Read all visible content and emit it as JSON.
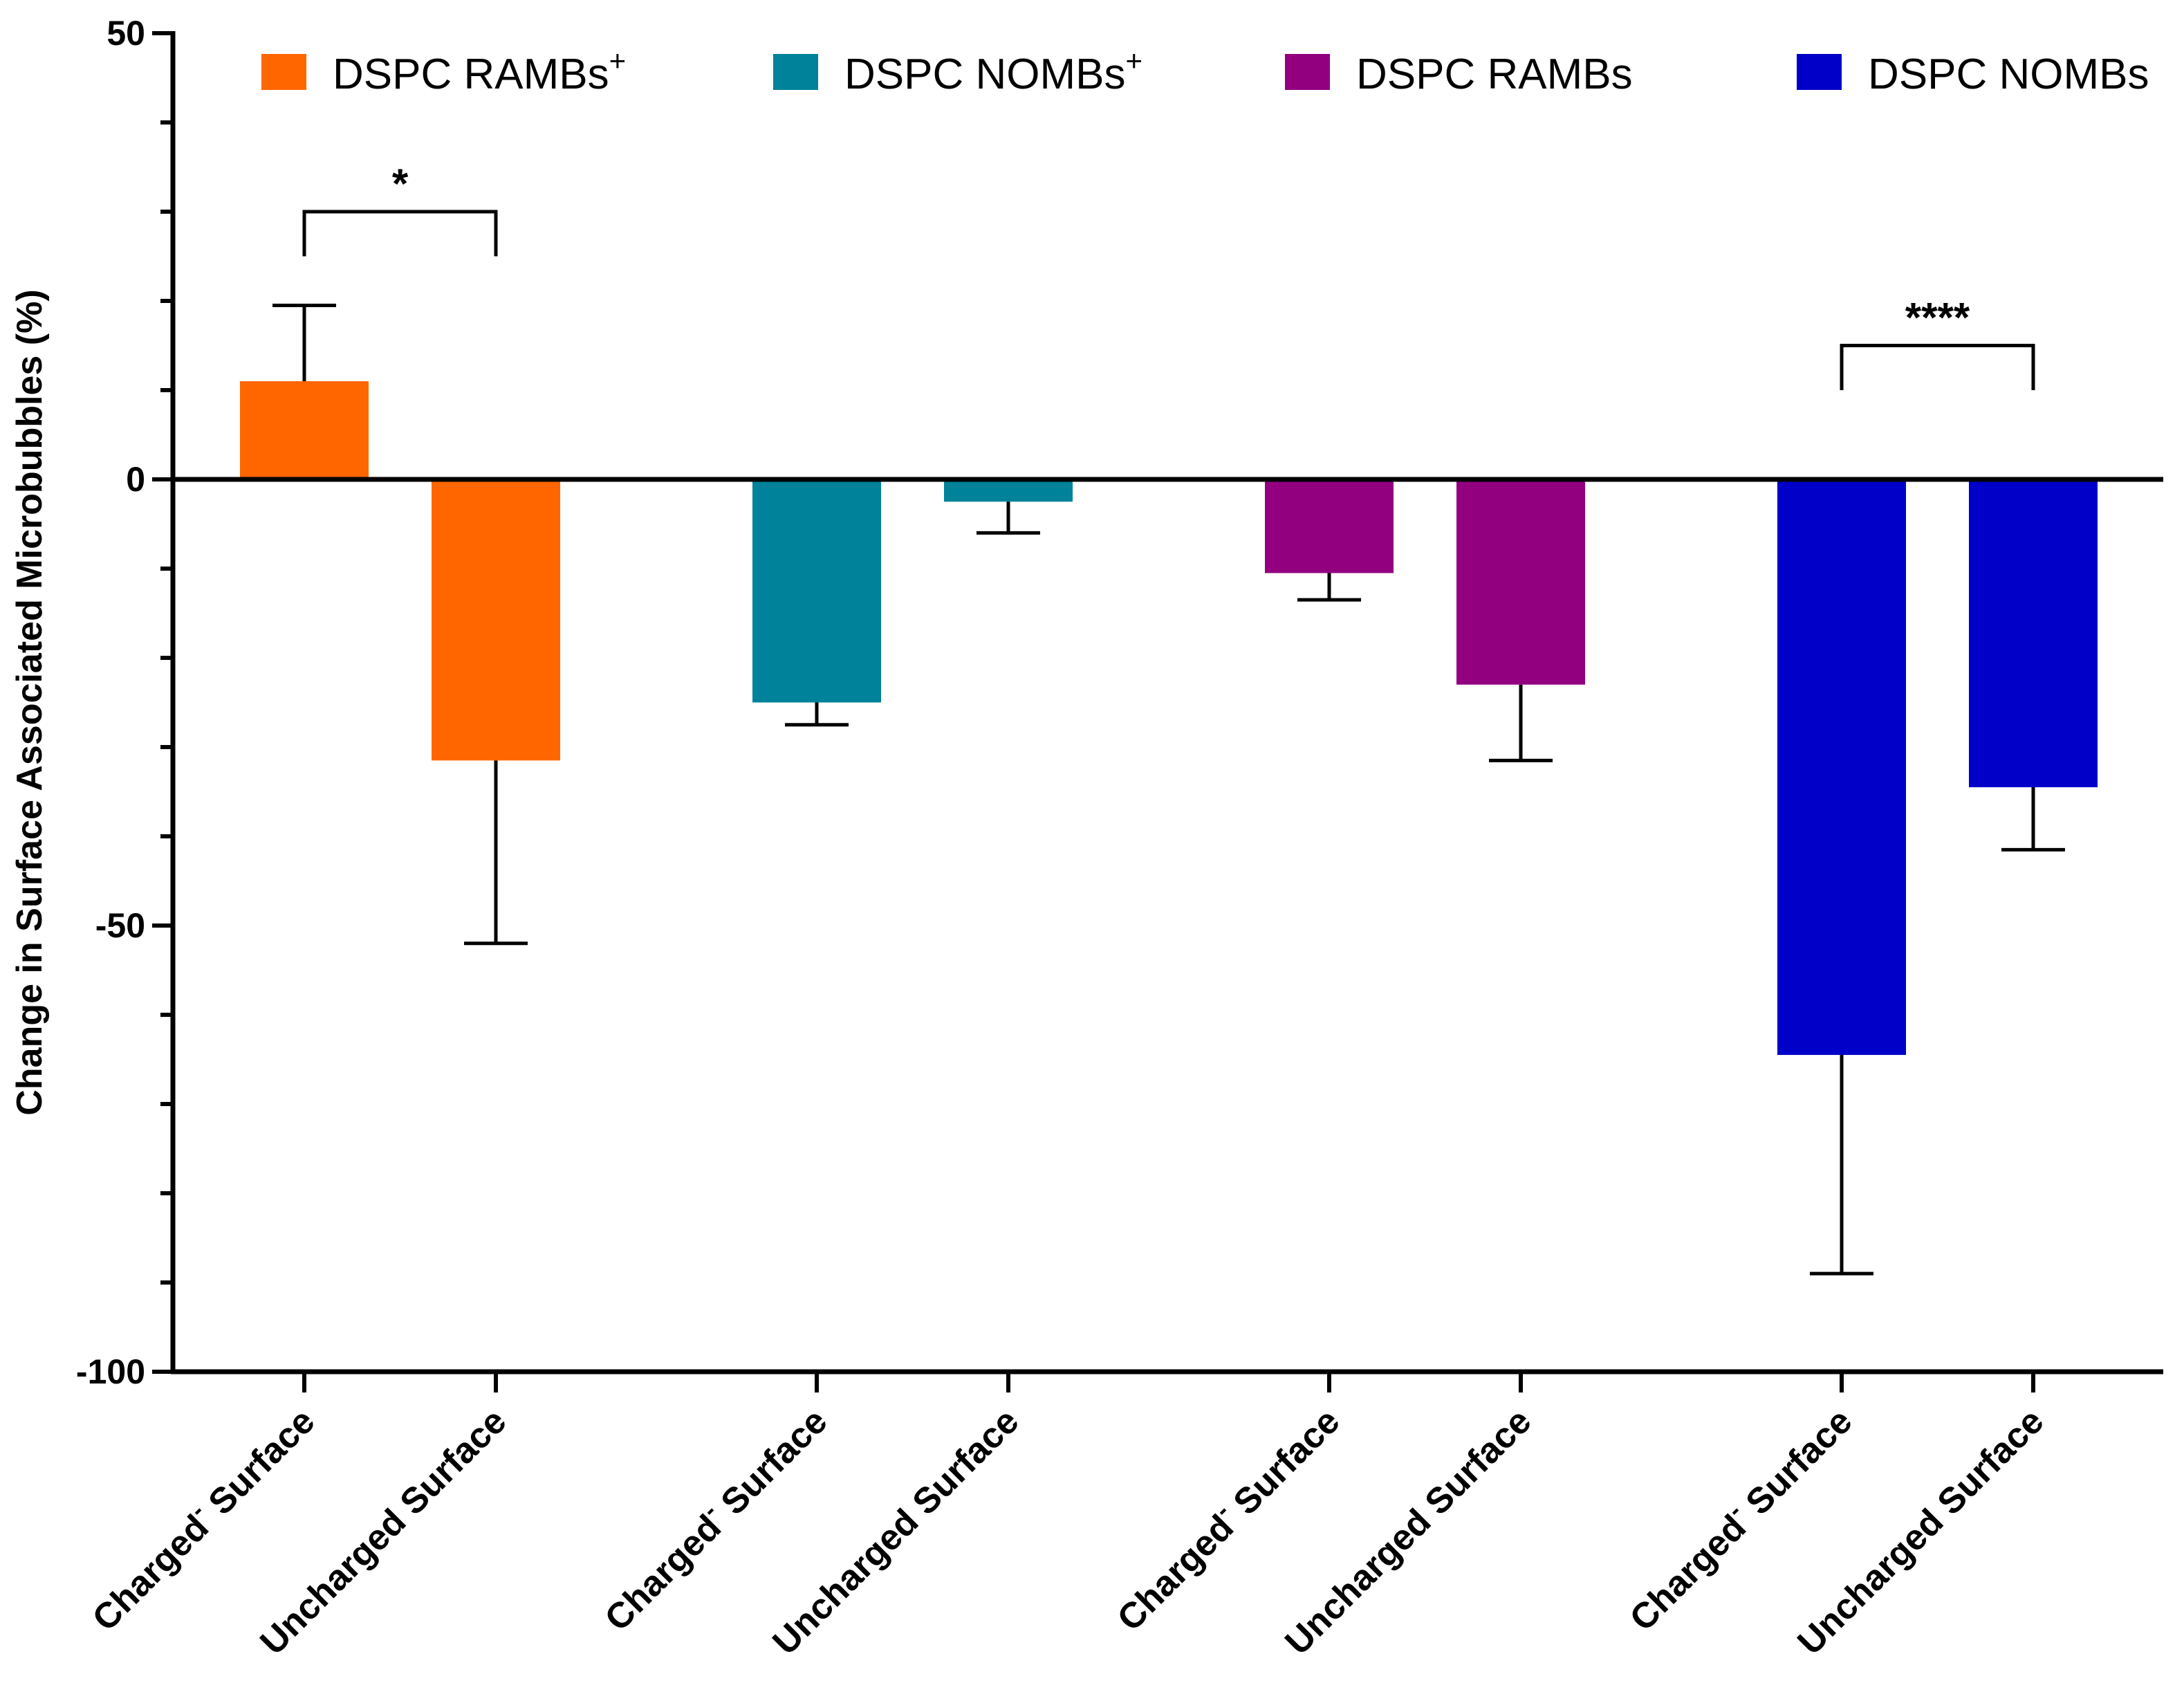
{
  "chart_data": {
    "type": "bar",
    "ylabel": "Change in Surface Associated Microbubbles (%)",
    "ylim": [
      -100,
      50
    ],
    "yticks": [
      50,
      0,
      -50,
      -100
    ],
    "ytick_labels": [
      "50",
      "0",
      "-50",
      "-100"
    ],
    "legend_position": "top",
    "series": [
      {
        "name": "DSPC RAMBs",
        "superscript": "+",
        "color": "#ff6600",
        "categories": [
          "Charged",
          "Uncharged Surface"
        ],
        "category_superscripts": [
          "-",
          ""
        ],
        "category_suffixes": [
          " Surface",
          ""
        ],
        "values": [
          11,
          -31.5
        ],
        "errors": [
          8.5,
          20.5
        ]
      },
      {
        "name": "DSPC NOMBs",
        "superscript": "+",
        "color": "#00829a",
        "categories": [
          "Charged",
          "Uncharged Surface"
        ],
        "category_superscripts": [
          "-",
          ""
        ],
        "category_suffixes": [
          " Surface",
          ""
        ],
        "values": [
          -25,
          -2.5
        ],
        "errors": [
          2.5,
          3.5
        ]
      },
      {
        "name": "DSPC RAMBs",
        "superscript": "",
        "color": "#920080",
        "categories": [
          "Charged",
          "Uncharged Surface"
        ],
        "category_superscripts": [
          "-",
          ""
        ],
        "category_suffixes": [
          " Surface",
          ""
        ],
        "values": [
          -10.5,
          -23
        ],
        "errors": [
          3,
          8.5
        ]
      },
      {
        "name": "DSPC NOMBs",
        "superscript": "",
        "color": "#0000c8",
        "categories": [
          "Charged",
          "Uncharged Surface"
        ],
        "category_superscripts": [
          "-",
          ""
        ],
        "category_suffixes": [
          " Surface",
          ""
        ],
        "values": [
          -64.5,
          -34.5
        ],
        "errors": [
          24.5,
          7
        ]
      }
    ],
    "annotations": [
      {
        "label": "*",
        "group": 0,
        "bracket_y": 30,
        "leg_bottom": 25
      },
      {
        "label": "****",
        "group": 3,
        "bracket_y": 15,
        "leg_bottom": 10
      }
    ]
  }
}
